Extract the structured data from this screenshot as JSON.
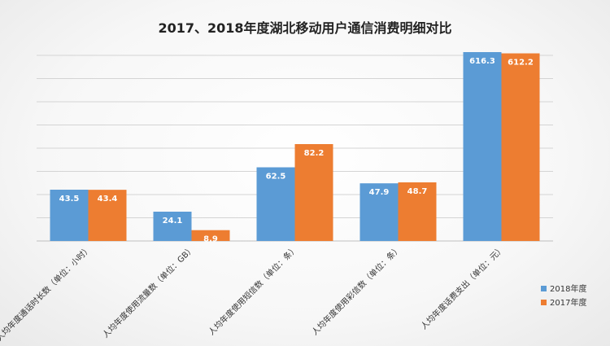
{
  "chart_data": {
    "type": "bar",
    "title": "2017、2018年度湖北移动用户通信消费明细对比",
    "categories": [
      "人均年度通话时长数（单位：小时）",
      "人均年度使用流量数（单位：GB）",
      "人均年度使用短信数（单位：条）",
      "人均年度使用彩信数（单位：条）",
      "人均年度话费支出（单位：元）"
    ],
    "series": [
      {
        "name": "2018年度",
        "values": [
          43.5,
          24.1,
          62.5,
          47.9,
          616.3
        ],
        "color": "#5b9bd5"
      },
      {
        "name": "2017年度",
        "values": [
          43.4,
          8.9,
          82.2,
          48.7,
          612.2
        ],
        "color": "#ed7d31"
      }
    ],
    "xlabel": "",
    "ylabel": "",
    "grid": true,
    "legend": "bottom-right"
  }
}
